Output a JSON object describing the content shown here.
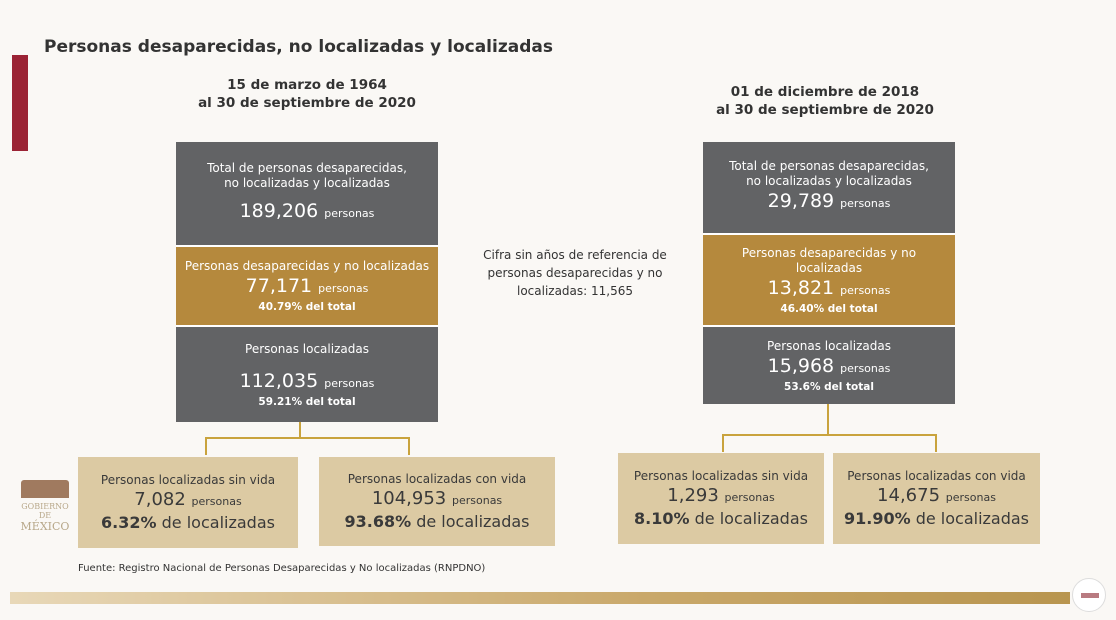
{
  "title": "Personas desaparecidas, no localizadas y localizadas",
  "colors": {
    "gray": "#626365",
    "gold": "#b5893d",
    "light": "#dccaa3",
    "red": "#9b2335"
  },
  "left": {
    "header": [
      "15 de marzo de 1964",
      "al 30 de septiembre de 2020"
    ],
    "total": {
      "label": [
        "Total de personas desaparecidas,",
        "no localizadas y localizadas"
      ],
      "value": "189,206",
      "unit": "personas"
    },
    "missing": {
      "label": "Personas desaparecidas y no localizadas",
      "value": "77,171",
      "unit": "personas",
      "pct": "40.79% del total"
    },
    "located": {
      "label": "Personas localizadas",
      "value": "112,035",
      "unit": "personas",
      "pct": "59.21% del total"
    },
    "dead": {
      "label": "Personas localizadas sin vida",
      "value": "7,082",
      "unit": "personas",
      "pct": "6.32%",
      "pct_suffix": "de localizadas"
    },
    "alive": {
      "label": "Personas localizadas con vida",
      "value": "104,953",
      "unit": "personas",
      "pct": "93.68%",
      "pct_suffix": "de localizadas"
    }
  },
  "middle_note": "Cifra sin años de referencia de personas desaparecidas y no localizadas: 11,565",
  "right": {
    "header": [
      "01 de diciembre de 2018",
      "al 30 de septiembre de 2020"
    ],
    "total": {
      "label": [
        "Total de personas desaparecidas,",
        "no localizadas y localizadas"
      ],
      "value": "29,789",
      "unit": "personas"
    },
    "missing": {
      "label": "Personas desaparecidas y no localizadas",
      "value": "13,821",
      "unit": "personas",
      "pct": "46.40% del total"
    },
    "located": {
      "label": "Personas localizadas",
      "value": "15,968",
      "unit": "personas",
      "pct": "53.6% del total"
    },
    "dead": {
      "label": "Personas localizadas sin vida",
      "value": "1,293",
      "unit": "personas",
      "pct": "8.10%",
      "pct_suffix": "de localizadas"
    },
    "alive": {
      "label": "Personas localizadas con vida",
      "value": "14,675",
      "unit": "personas",
      "pct": "91.90%",
      "pct_suffix": "de localizadas"
    }
  },
  "source": "Fuente: Registro Nacional de Personas Desaparecidas y No localizadas (RNPDNO)",
  "logo": {
    "text": [
      "GOBIERNO DE",
      "MÉXICO"
    ]
  }
}
